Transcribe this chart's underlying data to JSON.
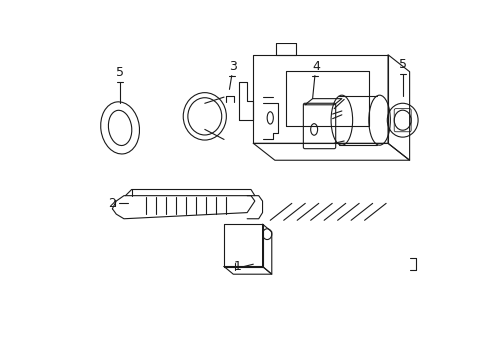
{
  "background_color": "#ffffff",
  "line_color": "#1a1a1a",
  "line_width": 0.8,
  "fig_width": 4.89,
  "fig_height": 3.6
}
